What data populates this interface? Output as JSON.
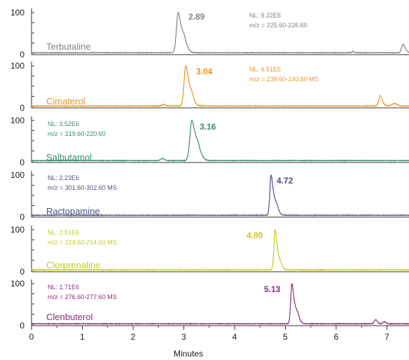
{
  "chart_data": {
    "type": "line",
    "xlabel": "Minutes",
    "xlim": [
      0,
      7.5
    ],
    "x_ticks": [
      "0",
      "1",
      "2",
      "3",
      "4",
      "5",
      "6",
      "7"
    ],
    "ylim": [
      0,
      100
    ],
    "y_ticks": [
      "0",
      "100"
    ],
    "grid": false,
    "series": [
      {
        "name": "Terbutaline",
        "color": "#8a807b",
        "nl": "NL: 9.22E5",
        "mz": "m/z  = 225.60-226.60",
        "peak_label": "2.89",
        "peaks": [
          {
            "rt": 2.89,
            "height": 100,
            "width": 0.035,
            "tail": 0.06
          },
          {
            "rt": 6.33,
            "height": 3,
            "width": 0.02,
            "tail": 0
          },
          {
            "rt": 7.32,
            "height": 21,
            "width": 0.03,
            "tail": 0.02
          }
        ]
      },
      {
        "name": "Cimaterol",
        "color": "#ef931d",
        "nl": "NL: 6.51E5",
        "mz": "m/z  = 239.60-240.60  MS",
        "peak_label": "3.04",
        "peaks": [
          {
            "rt": 2.6,
            "height": 4,
            "width": 0.03,
            "tail": 0
          },
          {
            "rt": 3.04,
            "height": 100,
            "width": 0.035,
            "tail": 0.05
          },
          {
            "rt": 6.87,
            "height": 26,
            "width": 0.03,
            "tail": 0.02
          },
          {
            "rt": 7.15,
            "height": 6,
            "width": 0.05,
            "tail": 0
          }
        ]
      },
      {
        "name": "Salbutamol",
        "color": "#3b8a6a",
        "nl": "NL: 3.52E6",
        "mz": "m/z  = 219.60-220.60",
        "peak_label": "3.16",
        "peaks": [
          {
            "rt": 2.58,
            "height": 5,
            "width": 0.035,
            "tail": 0
          },
          {
            "rt": 3.16,
            "height": 100,
            "width": 0.04,
            "tail": 0.06
          }
        ]
      },
      {
        "name": "Ractopamine",
        "color": "#4d4e86",
        "nl": "NL: 2.23E6",
        "mz": "m/z  = 301.60-302.60  MS",
        "peak_label": "4.72",
        "peaks": [
          {
            "rt": 4.72,
            "height": 100,
            "width": 0.025,
            "tail": 0.05
          }
        ]
      },
      {
        "name": "Clorprenaline",
        "color": "#c2cc1c",
        "nl": "NL: 2.51E6",
        "mz": "m/z  = 213.60-214.60  MS",
        "peak_label": "4.80",
        "peaks": [
          {
            "rt": 4.8,
            "height": 100,
            "width": 0.025,
            "tail": 0.04
          }
        ]
      },
      {
        "name": "Clenbuterol",
        "color": "#8c2a7c",
        "nl": "NL: 1.71E6",
        "mz": "m/z  = 276.60-277.60  MS",
        "peak_label": "5.13",
        "peaks": [
          {
            "rt": 5.13,
            "height": 100,
            "width": 0.025,
            "tail": 0.05
          },
          {
            "rt": 6.78,
            "height": 10,
            "width": 0.03,
            "tail": 0
          },
          {
            "rt": 6.95,
            "height": 5,
            "width": 0.03,
            "tail": 0
          }
        ]
      }
    ]
  }
}
